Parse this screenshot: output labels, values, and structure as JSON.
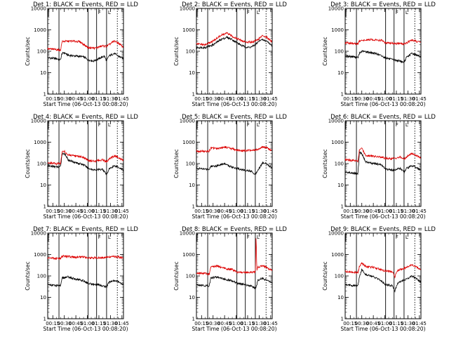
{
  "chart_data": {
    "type": "line",
    "layout": "3x3 grid of panels",
    "yscale": "log",
    "ylim": [
      1,
      10000
    ],
    "ytick_labels": [
      "1",
      "10",
      "100",
      "1000",
      "10000"
    ],
    "xlim": [
      "00:08:20",
      "01:47:00"
    ],
    "xtick_labels": [
      "00:15",
      "00:30",
      "00:45",
      "01:00",
      "01:15",
      "01:30",
      "01:45"
    ],
    "xlabel": "Start Time (06-Oct-13 00:08:20)",
    "ylabel": "Counts/sec",
    "event_markers": [
      {
        "time": "00:23",
        "style": "solid",
        "tag": ""
      },
      {
        "time": "01:01",
        "style": "solid",
        "tag": ""
      },
      {
        "time": "01:12",
        "style": "solid",
        "tag": "F"
      },
      {
        "time": "01:25",
        "style": "solid",
        "tag": "L"
      },
      {
        "time": "01:39",
        "style": "dotted",
        "tag": ""
      }
    ],
    "series_colors": {
      "black": "#000000",
      "red": "#dd0000"
    },
    "panels": [
      {
        "title": "Det 1: BLACK = Events, RED = LLD",
        "black": [
          [
            8.3,
            50
          ],
          [
            20,
            45
          ],
          [
            25,
            40
          ],
          [
            27,
            80
          ],
          [
            30,
            85
          ],
          [
            35,
            65
          ],
          [
            45,
            60
          ],
          [
            55,
            55
          ],
          [
            61,
            40
          ],
          [
            68,
            35
          ],
          [
            75,
            45
          ],
          [
            82,
            60
          ],
          [
            85,
            35
          ],
          [
            88,
            60
          ],
          [
            95,
            80
          ],
          [
            100,
            60
          ],
          [
            107,
            45
          ]
        ],
        "red": [
          [
            8.3,
            130
          ],
          [
            20,
            120
          ],
          [
            25,
            110
          ],
          [
            27,
            280
          ],
          [
            30,
            290
          ],
          [
            40,
            300
          ],
          [
            50,
            280
          ],
          [
            61,
            150
          ],
          [
            70,
            140
          ],
          [
            80,
            180
          ],
          [
            85,
            170
          ],
          [
            88,
            200
          ],
          [
            95,
            300
          ],
          [
            100,
            250
          ],
          [
            107,
            150
          ]
        ]
      },
      {
        "title": "Det 2: BLACK = Events, RED = LLD",
        "black": [
          [
            8.3,
            150
          ],
          [
            20,
            150
          ],
          [
            30,
            200
          ],
          [
            40,
            350
          ],
          [
            48,
            450
          ],
          [
            55,
            350
          ],
          [
            61,
            250
          ],
          [
            68,
            180
          ],
          [
            75,
            150
          ],
          [
            80,
            160
          ],
          [
            85,
            200
          ],
          [
            92,
            350
          ],
          [
            100,
            300
          ],
          [
            107,
            180
          ]
        ],
        "red": [
          [
            8.3,
            220
          ],
          [
            20,
            200
          ],
          [
            30,
            300
          ],
          [
            40,
            550
          ],
          [
            48,
            700
          ],
          [
            55,
            500
          ],
          [
            61,
            400
          ],
          [
            68,
            300
          ],
          [
            75,
            260
          ],
          [
            82,
            280
          ],
          [
            88,
            350
          ],
          [
            95,
            550
          ],
          [
            100,
            450
          ],
          [
            107,
            280
          ]
        ]
      },
      {
        "title": "Det 3: BLACK = Events, RED = LLD",
        "black": [
          [
            8.3,
            60
          ],
          [
            20,
            55
          ],
          [
            25,
            50
          ],
          [
            27,
            80
          ],
          [
            30,
            100
          ],
          [
            40,
            90
          ],
          [
            50,
            75
          ],
          [
            61,
            50
          ],
          [
            70,
            40
          ],
          [
            80,
            35
          ],
          [
            85,
            30
          ],
          [
            88,
            50
          ],
          [
            95,
            80
          ],
          [
            100,
            70
          ],
          [
            107,
            55
          ]
        ],
        "red": [
          [
            8.3,
            250
          ],
          [
            20,
            230
          ],
          [
            25,
            220
          ],
          [
            27,
            300
          ],
          [
            40,
            350
          ],
          [
            55,
            330
          ],
          [
            61,
            250
          ],
          [
            75,
            230
          ],
          [
            85,
            220
          ],
          [
            95,
            330
          ],
          [
            100,
            300
          ],
          [
            107,
            250
          ]
        ]
      },
      {
        "title": "Det 4: BLACK = Events, RED = LLD",
        "black": [
          [
            8.3,
            80
          ],
          [
            20,
            70
          ],
          [
            25,
            70
          ],
          [
            27,
            280
          ],
          [
            30,
            300
          ],
          [
            35,
            150
          ],
          [
            45,
            110
          ],
          [
            55,
            90
          ],
          [
            61,
            60
          ],
          [
            70,
            50
          ],
          [
            80,
            55
          ],
          [
            85,
            30
          ],
          [
            88,
            55
          ],
          [
            95,
            80
          ],
          [
            100,
            70
          ],
          [
            107,
            50
          ]
        ],
        "red": [
          [
            8.3,
            110
          ],
          [
            20,
            100
          ],
          [
            25,
            100
          ],
          [
            27,
            350
          ],
          [
            30,
            380
          ],
          [
            35,
            250
          ],
          [
            45,
            220
          ],
          [
            55,
            200
          ],
          [
            61,
            140
          ],
          [
            70,
            130
          ],
          [
            80,
            150
          ],
          [
            85,
            120
          ],
          [
            88,
            160
          ],
          [
            95,
            230
          ],
          [
            100,
            200
          ],
          [
            107,
            140
          ]
        ]
      },
      {
        "title": "Det 5: BLACK = Events, RED = LLD",
        "black": [
          [
            8.3,
            60
          ],
          [
            20,
            55
          ],
          [
            25,
            55
          ],
          [
            27,
            75
          ],
          [
            35,
            80
          ],
          [
            45,
            100
          ],
          [
            50,
            80
          ],
          [
            61,
            60
          ],
          [
            70,
            50
          ],
          [
            80,
            45
          ],
          [
            85,
            30
          ],
          [
            88,
            50
          ],
          [
            95,
            110
          ],
          [
            100,
            100
          ],
          [
            107,
            60
          ]
        ],
        "red": [
          [
            8.3,
            380
          ],
          [
            20,
            370
          ],
          [
            25,
            370
          ],
          [
            27,
            550
          ],
          [
            35,
            500
          ],
          [
            45,
            600
          ],
          [
            55,
            500
          ],
          [
            61,
            420
          ],
          [
            70,
            400
          ],
          [
            80,
            420
          ],
          [
            88,
            450
          ],
          [
            95,
            600
          ],
          [
            100,
            550
          ],
          [
            107,
            400
          ]
        ]
      },
      {
        "title": "Det 6: BLACK = Events, RED = LLD",
        "black": [
          [
            8.3,
            40
          ],
          [
            20,
            35
          ],
          [
            25,
            35
          ],
          [
            27,
            350
          ],
          [
            30,
            300
          ],
          [
            35,
            120
          ],
          [
            45,
            100
          ],
          [
            55,
            90
          ],
          [
            61,
            55
          ],
          [
            70,
            50
          ],
          [
            80,
            60
          ],
          [
            85,
            40
          ],
          [
            88,
            60
          ],
          [
            95,
            80
          ],
          [
            100,
            70
          ],
          [
            107,
            50
          ]
        ],
        "red": [
          [
            8.3,
            150
          ],
          [
            20,
            140
          ],
          [
            25,
            130
          ],
          [
            27,
            450
          ],
          [
            30,
            500
          ],
          [
            35,
            250
          ],
          [
            45,
            220
          ],
          [
            55,
            200
          ],
          [
            61,
            180
          ],
          [
            70,
            170
          ],
          [
            80,
            200
          ],
          [
            85,
            160
          ],
          [
            88,
            200
          ],
          [
            95,
            300
          ],
          [
            100,
            250
          ],
          [
            107,
            180
          ]
        ]
      },
      {
        "title": "Det 7: BLACK = Events, RED = LLD",
        "black": [
          [
            8.3,
            40
          ],
          [
            20,
            35
          ],
          [
            25,
            35
          ],
          [
            27,
            80
          ],
          [
            35,
            90
          ],
          [
            45,
            70
          ],
          [
            55,
            60
          ],
          [
            61,
            45
          ],
          [
            70,
            40
          ],
          [
            80,
            35
          ],
          [
            85,
            30
          ],
          [
            88,
            50
          ],
          [
            95,
            60
          ],
          [
            100,
            55
          ],
          [
            107,
            40
          ]
        ],
        "red": [
          [
            8.3,
            700
          ],
          [
            20,
            650
          ],
          [
            25,
            650
          ],
          [
            27,
            850
          ],
          [
            35,
            800
          ],
          [
            45,
            750
          ],
          [
            55,
            800
          ],
          [
            61,
            700
          ],
          [
            70,
            700
          ],
          [
            80,
            720
          ],
          [
            88,
            750
          ],
          [
            95,
            800
          ],
          [
            100,
            780
          ],
          [
            107,
            700
          ]
        ]
      },
      {
        "title": "Det 8: BLACK = Events, RED = LLD",
        "black": [
          [
            8.3,
            40
          ],
          [
            20,
            35
          ],
          [
            25,
            35
          ],
          [
            27,
            80
          ],
          [
            35,
            90
          ],
          [
            45,
            70
          ],
          [
            55,
            60
          ],
          [
            61,
            45
          ],
          [
            70,
            40
          ],
          [
            80,
            35
          ],
          [
            85,
            25
          ],
          [
            87,
            40
          ],
          [
            88,
            60
          ],
          [
            95,
            80
          ],
          [
            100,
            60
          ],
          [
            107,
            50
          ]
        ],
        "red": [
          [
            8.3,
            140
          ],
          [
            20,
            130
          ],
          [
            25,
            120
          ],
          [
            27,
            250
          ],
          [
            35,
            300
          ],
          [
            45,
            220
          ],
          [
            55,
            200
          ],
          [
            61,
            150
          ],
          [
            70,
            140
          ],
          [
            80,
            150
          ],
          [
            85,
            150
          ],
          [
            86,
            8000
          ],
          [
            87,
            180
          ],
          [
            88,
            250
          ],
          [
            95,
            300
          ],
          [
            100,
            250
          ],
          [
            107,
            180
          ]
        ]
      },
      {
        "title": "Det 9: BLACK = Events, RED = LLD",
        "black": [
          [
            8.3,
            40
          ],
          [
            20,
            35
          ],
          [
            25,
            35
          ],
          [
            27,
            90
          ],
          [
            30,
            200
          ],
          [
            35,
            120
          ],
          [
            45,
            90
          ],
          [
            55,
            60
          ],
          [
            61,
            40
          ],
          [
            70,
            35
          ],
          [
            73,
            20
          ],
          [
            76,
            40
          ],
          [
            80,
            55
          ],
          [
            88,
            70
          ],
          [
            95,
            100
          ],
          [
            100,
            80
          ],
          [
            107,
            50
          ]
        ],
        "red": [
          [
            8.3,
            160
          ],
          [
            20,
            150
          ],
          [
            25,
            140
          ],
          [
            27,
            300
          ],
          [
            30,
            400
          ],
          [
            35,
            280
          ],
          [
            45,
            250
          ],
          [
            55,
            200
          ],
          [
            61,
            170
          ],
          [
            70,
            160
          ],
          [
            73,
            90
          ],
          [
            76,
            170
          ],
          [
            80,
            200
          ],
          [
            88,
            250
          ],
          [
            95,
            350
          ],
          [
            100,
            280
          ],
          [
            107,
            200
          ]
        ]
      }
    ]
  }
}
